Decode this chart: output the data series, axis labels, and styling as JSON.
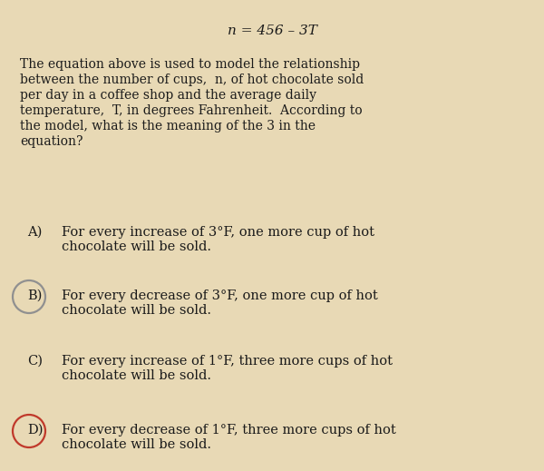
{
  "background_color": "#e8d9b5",
  "equation": "n = 456 – 3T",
  "paragraph_lines": [
    "The equation above is used to model the relationship",
    "between the number of cups,  n, of hot chocolate sold",
    "per day in a coffee shop and the average daily",
    "temperature,  T, in degrees Fahrenheit.  According to",
    "the model, what is the meaning of the 3 in the",
    "equation?"
  ],
  "options": [
    {
      "letter": "A)",
      "line1": "For every increase of 3°F, one more cup of hot",
      "line2": "chocolate will be sold.",
      "circle": false,
      "circle_color": null
    },
    {
      "letter": "B)",
      "line1": "For every decrease of 3°F, one more cup of hot",
      "line2": "chocolate will be sold.",
      "circle": true,
      "circle_color": "#909090"
    },
    {
      "letter": "C)",
      "line1": "For every increase of 1°F, three more cups of hot",
      "line2": "chocolate will be sold.",
      "circle": false,
      "circle_color": null
    },
    {
      "letter": "D)",
      "line1": "For every decrease of 1°F, three more cups of hot",
      "line2": "chocolate will be sold.",
      "circle": true,
      "circle_color": "#c0392b"
    }
  ],
  "font_size_equation": 11,
  "font_size_paragraph": 10,
  "font_size_options": 10.5
}
